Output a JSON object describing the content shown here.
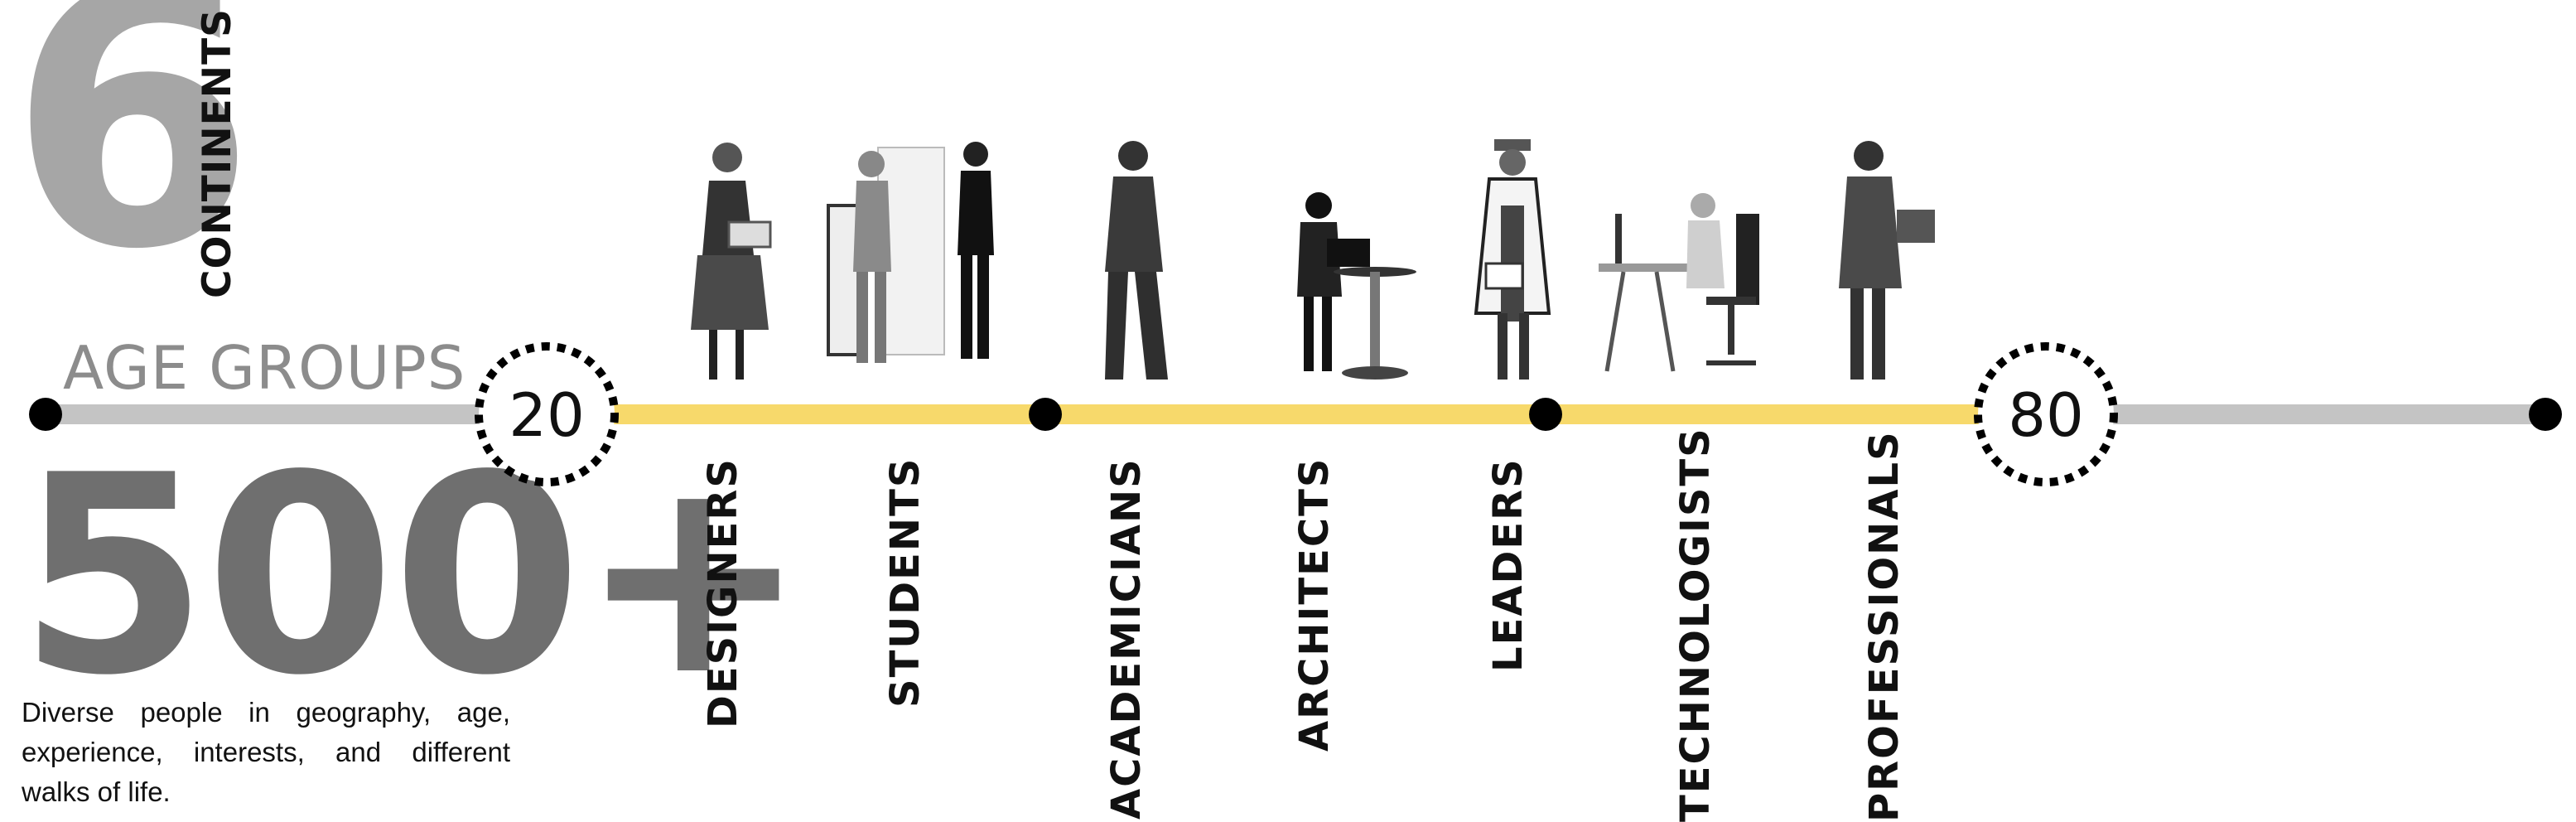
{
  "headline": {
    "continents_number": "6",
    "continents_label": "CONTINENTS",
    "age_groups_label": "AGE GROUPS",
    "participants_number": "500+",
    "description": "Diverse people in geography, age, experience, interests, and different walks of life."
  },
  "timeline": {
    "age_start": "20",
    "age_end": "80",
    "colors": {
      "track": "#c4c4c4",
      "highlight": "#f7d96b",
      "node": "#000000"
    }
  },
  "roles": [
    {
      "label": "DESIGNERS",
      "icon": "designer-figure-icon"
    },
    {
      "label": "STUDENTS",
      "icon": "students-figure-icon"
    },
    {
      "label": "ACADEMICIANS",
      "icon": "academician-figure-icon"
    },
    {
      "label": "ARCHITECTS",
      "icon": "architect-figure-icon"
    },
    {
      "label": "LEADERS",
      "icon": "leader-figure-icon"
    },
    {
      "label": "TECHNOLOGISTS",
      "icon": "technologist-figure-icon"
    },
    {
      "label": "PROFESSIONALS",
      "icon": "professional-figure-icon"
    }
  ]
}
